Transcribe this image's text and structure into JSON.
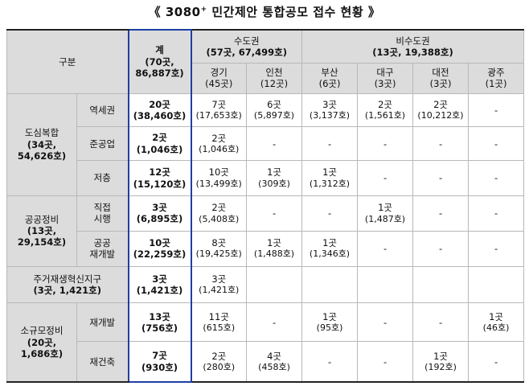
{
  "title": {
    "prefix": "《 3080",
    "sup": "+",
    "suffix": " 민간제안 통합공모 접수 현황 》"
  },
  "header": {
    "category": "구분",
    "total": {
      "label": "계",
      "line1": "(70곳,",
      "line2": "86,887호)"
    },
    "capital": {
      "label": "수도권",
      "sub": "(57곳, 67,499호)"
    },
    "noncapital": {
      "label": "비수도권",
      "sub": "(13곳, 19,388호)"
    },
    "regions": [
      {
        "name": "경기",
        "sub": "(45곳)"
      },
      {
        "name": "인천",
        "sub": "(12곳)"
      },
      {
        "name": "부산",
        "sub": "(6곳)"
      },
      {
        "name": "대구",
        "sub": "(3곳)"
      },
      {
        "name": "대전",
        "sub": "(3곳)"
      },
      {
        "name": "광주",
        "sub": "(1곳)"
      }
    ]
  },
  "groups": {
    "urban": {
      "name": "도심복합",
      "l1": "(34곳,",
      "l2": "54,626호)"
    },
    "public": {
      "name": "공공정비",
      "l1": "(13곳,",
      "l2": "29,154호)"
    },
    "residential": {
      "name": "주거재생혁신지구",
      "sub": "(3곳, 1,421호)"
    },
    "small": {
      "name": "소규모정비",
      "l1": "(20곳,",
      "l2": "1,686호)"
    }
  },
  "rows": [
    {
      "sub": "역세권",
      "total": [
        "20곳",
        "(38,460호)"
      ],
      "cells": [
        [
          "7곳",
          "(17,653호)"
        ],
        [
          "6곳",
          "(5,897호)"
        ],
        [
          "3곳",
          "(3,137호)"
        ],
        [
          "2곳",
          "(1,561호)"
        ],
        [
          "2곳",
          "(10,212호)"
        ],
        [
          "-",
          ""
        ]
      ]
    },
    {
      "sub": "준공업",
      "total": [
        "2곳",
        "(1,046호)"
      ],
      "cells": [
        [
          "2곳",
          "(1,046호)"
        ],
        [
          "-",
          ""
        ],
        [
          "-",
          ""
        ],
        [
          "-",
          ""
        ],
        [
          "-",
          ""
        ],
        [
          "-",
          ""
        ]
      ]
    },
    {
      "sub": "저층",
      "total": [
        "12곳",
        "(15,120호)"
      ],
      "cells": [
        [
          "10곳",
          "(13,499호)"
        ],
        [
          "1곳",
          "(309호)"
        ],
        [
          "1곳",
          "(1,312호)"
        ],
        [
          "-",
          ""
        ],
        [
          "-",
          ""
        ],
        [
          "-",
          ""
        ]
      ]
    },
    {
      "sub1": "직접",
      "sub2": "시행",
      "total": [
        "3곳",
        "(6,895호)"
      ],
      "cells": [
        [
          "2곳",
          "(5,408호)"
        ],
        [
          "-",
          ""
        ],
        [
          "-",
          ""
        ],
        [
          "1곳",
          "(1,487호)"
        ],
        [
          "-",
          ""
        ],
        [
          "-",
          ""
        ]
      ]
    },
    {
      "sub1": "공공",
      "sub2": "재개발",
      "total": [
        "10곳",
        "(22,259호)"
      ],
      "cells": [
        [
          "8곳",
          "(19,425호)"
        ],
        [
          "1곳",
          "(1,488호)"
        ],
        [
          "1곳",
          "(1,346호)"
        ],
        [
          "-",
          ""
        ],
        [
          "-",
          ""
        ],
        [
          "-",
          ""
        ]
      ]
    },
    {
      "total": [
        "3곳",
        "(1,421호)"
      ],
      "cells": [
        [
          "3곳",
          "(1,421호)"
        ],
        [
          "",
          ""
        ],
        [
          "",
          ""
        ],
        [
          "",
          ""
        ],
        [
          "",
          ""
        ],
        [
          "",
          ""
        ]
      ]
    },
    {
      "sub": "재개발",
      "total": [
        "13곳",
        "(756호)"
      ],
      "cells": [
        [
          "11곳",
          "(615호)"
        ],
        [
          "-",
          ""
        ],
        [
          "1곳",
          "(95호)"
        ],
        [
          "-",
          ""
        ],
        [
          "-",
          ""
        ],
        [
          "1곳",
          "(46호)"
        ]
      ]
    },
    {
      "sub": "재건축",
      "total": [
        "7곳",
        "(930호)"
      ],
      "cells": [
        [
          "2곳",
          "(280호)"
        ],
        [
          "4곳",
          "(458호)"
        ],
        [
          "-",
          ""
        ],
        [
          "-",
          ""
        ],
        [
          "1곳",
          "(192호)"
        ],
        [
          "-",
          ""
        ]
      ]
    }
  ]
}
